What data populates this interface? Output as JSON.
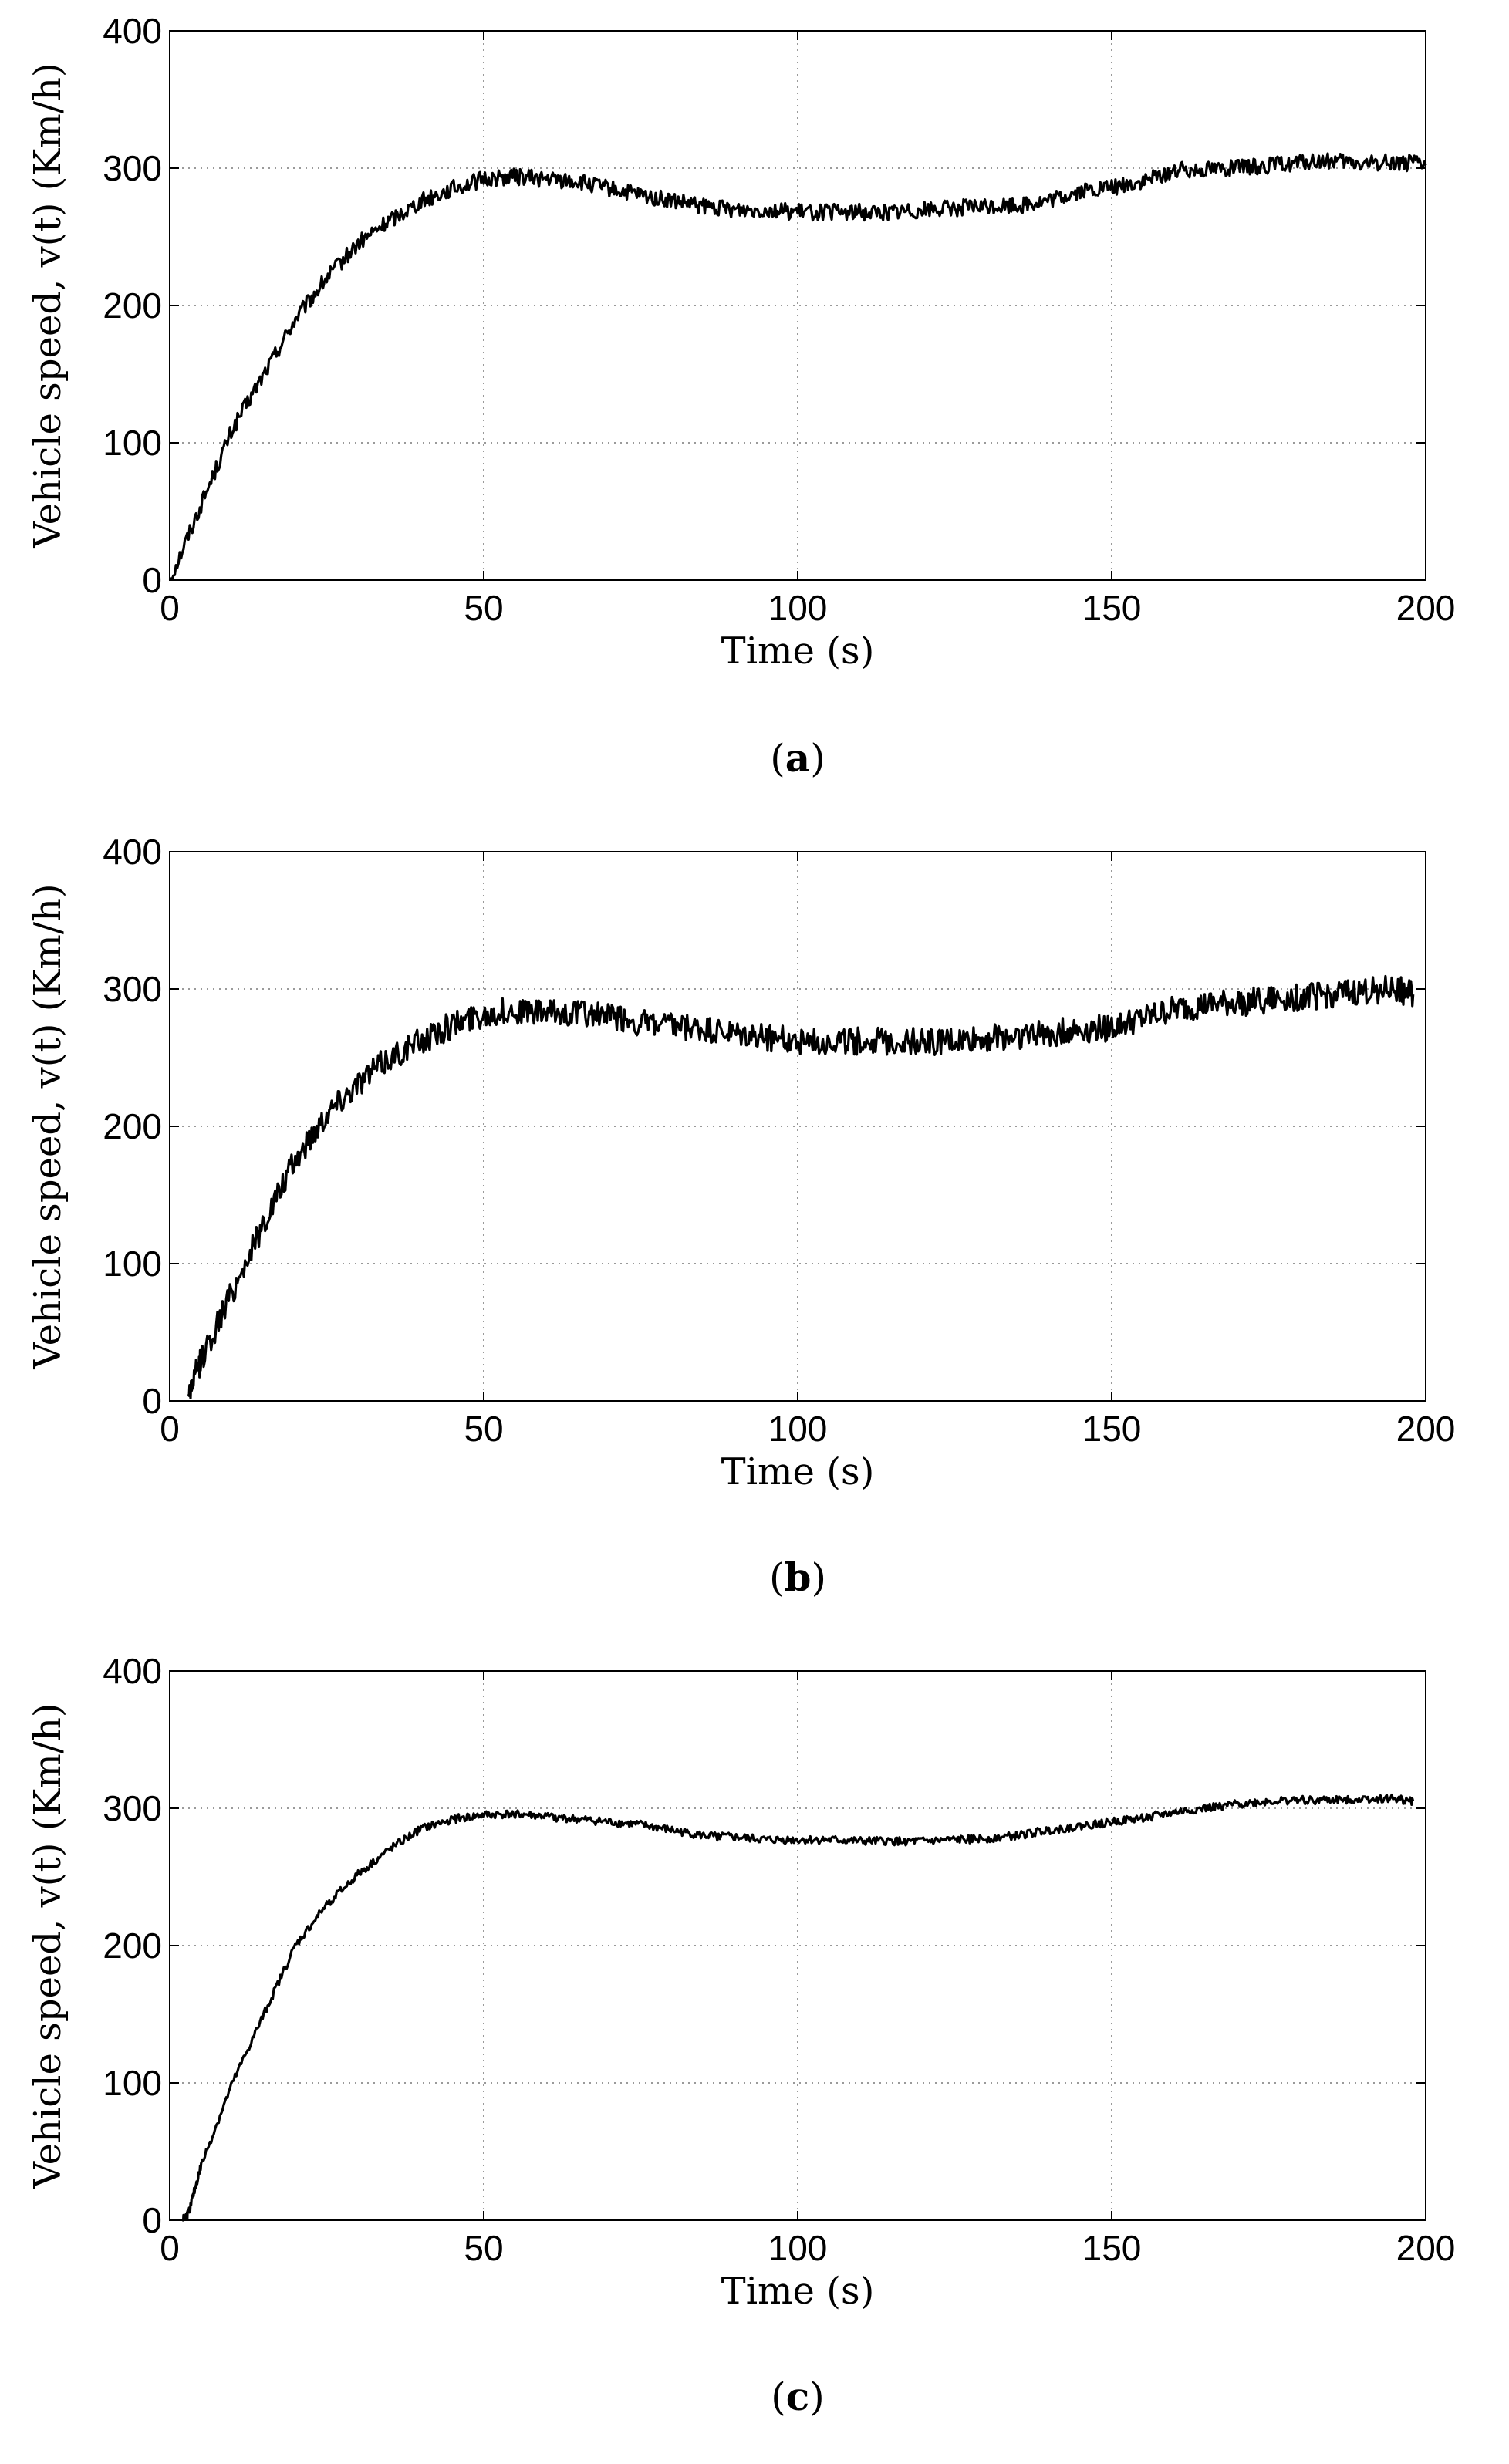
{
  "chart_data": [
    {
      "type": "line",
      "panel_label": "a",
      "xlabel": "Time (s)",
      "ylabel": "Vehicle speed, v(t) (Km/h)",
      "xlim": [
        0,
        200
      ],
      "ylim": [
        0,
        400
      ],
      "xticks": [
        0,
        50,
        100,
        150,
        200
      ],
      "yticks": [
        0,
        100,
        200,
        300,
        400
      ],
      "grid": true,
      "noise": 6,
      "series": [
        {
          "x": [
            0,
            5,
            10,
            15,
            20,
            25,
            30,
            35,
            40,
            45,
            50,
            55,
            60,
            65,
            70,
            75,
            80,
            85,
            90,
            95,
            100,
            105,
            110,
            115,
            120,
            125,
            130,
            135,
            140,
            145,
            150,
            155,
            160,
            165,
            170,
            175,
            180,
            185,
            190,
            195,
            200
          ],
          "values": [
            0,
            55,
            110,
            150,
            190,
            220,
            245,
            262,
            276,
            285,
            292,
            294,
            292,
            290,
            285,
            280,
            276,
            272,
            270,
            270,
            268,
            268,
            268,
            268,
            270,
            271,
            272,
            273,
            276,
            283,
            286,
            290,
            298,
            300,
            300,
            302,
            304,
            305,
            303,
            305,
            302
          ]
        }
      ]
    },
    {
      "type": "line",
      "panel_label": "b",
      "xlabel": "Time (s)",
      "ylabel": "Vehicle speed, v(t) (Km/h)",
      "xlim": [
        0,
        200
      ],
      "ylim": [
        0,
        400
      ],
      "xticks": [
        0,
        50,
        100,
        150,
        200
      ],
      "yticks": [
        0,
        100,
        200,
        300,
        400
      ],
      "grid": true,
      "noise": 10,
      "series": [
        {
          "x": [
            3,
            5,
            10,
            15,
            20,
            25,
            30,
            35,
            40,
            45,
            50,
            55,
            60,
            65,
            70,
            75,
            80,
            85,
            90,
            95,
            100,
            105,
            110,
            115,
            120,
            125,
            130,
            135,
            140,
            145,
            150,
            155,
            160,
            165,
            170,
            175,
            180,
            185,
            190,
            195,
            198
          ],
          "values": [
            5,
            30,
            80,
            130,
            175,
            210,
            232,
            250,
            262,
            274,
            282,
            284,
            282,
            283,
            280,
            275,
            272,
            270,
            266,
            265,
            262,
            262,
            262,
            262,
            262,
            262,
            264,
            266,
            268,
            270,
            272,
            278,
            285,
            288,
            290,
            292,
            294,
            296,
            298,
            300,
            296
          ]
        }
      ]
    },
    {
      "type": "line",
      "panel_label": "c",
      "xlabel": "Time (s)",
      "ylabel": "Vehicle speed, v(t) (Km/h)",
      "xlim": [
        0,
        200
      ],
      "ylim": [
        0,
        400
      ],
      "xticks": [
        0,
        50,
        100,
        150,
        200
      ],
      "yticks": [
        0,
        100,
        200,
        300,
        400
      ],
      "grid": true,
      "noise": 3,
      "series": [
        {
          "x": [
            2,
            3,
            5,
            10,
            15,
            20,
            25,
            30,
            35,
            40,
            45,
            50,
            55,
            60,
            65,
            70,
            75,
            80,
            85,
            90,
            95,
            100,
            105,
            110,
            115,
            120,
            125,
            130,
            135,
            140,
            145,
            150,
            155,
            160,
            165,
            170,
            175,
            180,
            185,
            190,
            195,
            198
          ],
          "values": [
            0,
            5,
            40,
            100,
            150,
            200,
            230,
            252,
            270,
            285,
            292,
            295,
            296,
            294,
            292,
            290,
            288,
            284,
            280,
            279,
            277,
            277,
            277,
            276,
            276,
            276,
            277,
            278,
            280,
            284,
            287,
            290,
            293,
            297,
            300,
            303,
            305,
            306,
            306,
            307,
            307,
            305
          ]
        }
      ]
    }
  ]
}
